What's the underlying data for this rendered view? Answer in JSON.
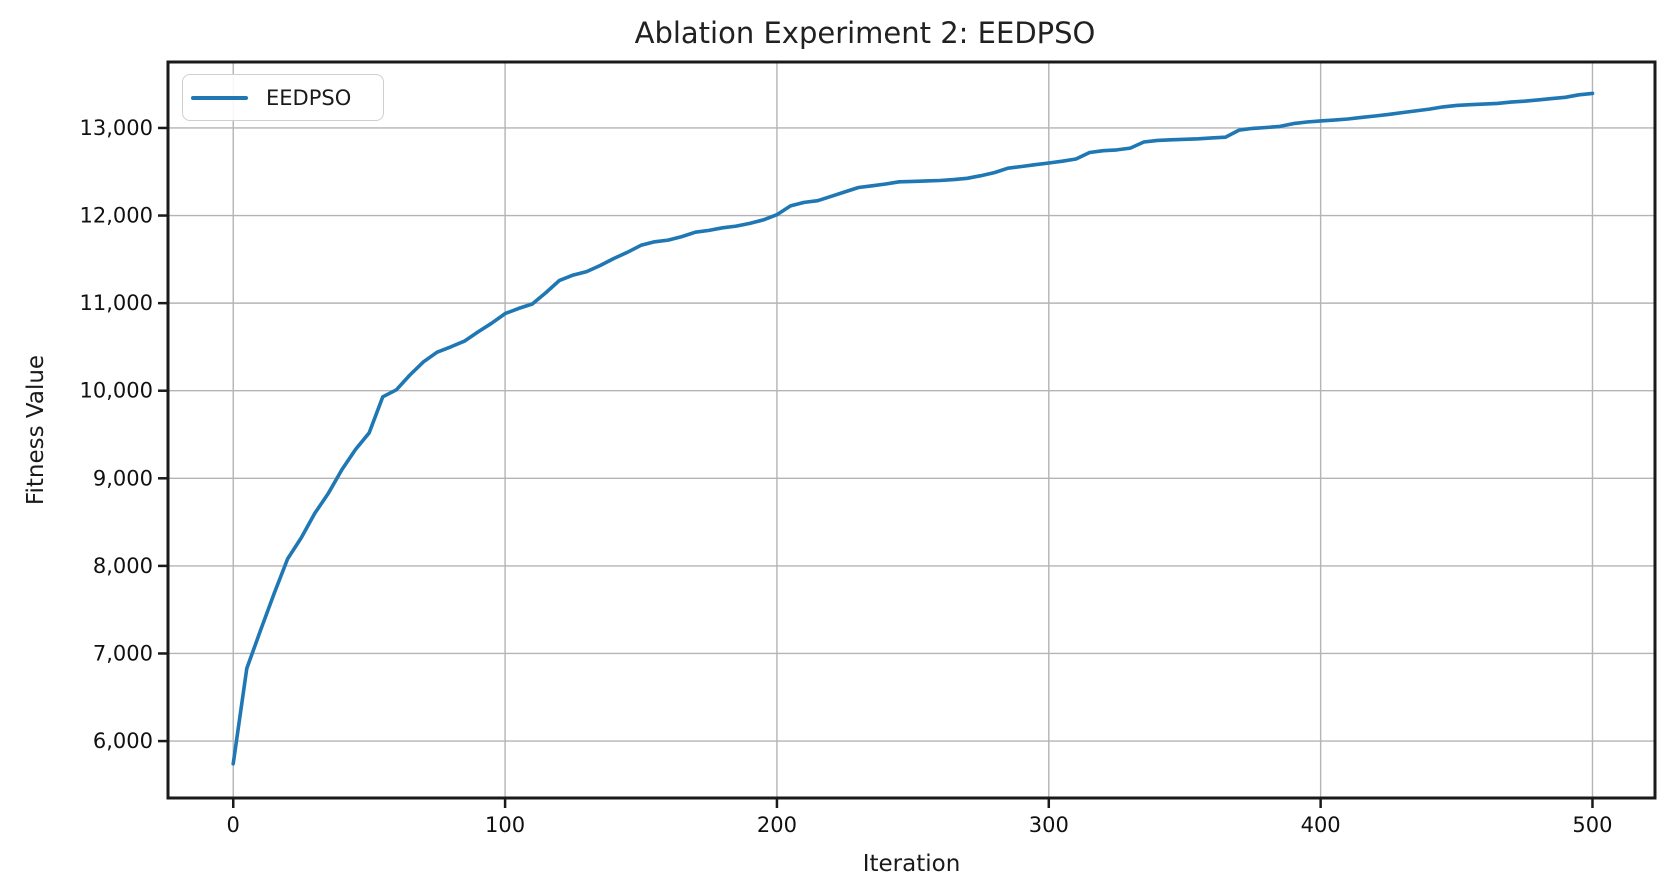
{
  "chart_data": {
    "type": "line",
    "title": "Ablation Experiment 2: EEDPSO",
    "xlabel": "Iteration",
    "ylabel": "Fitness Value",
    "grid": true,
    "legend_position": "upper left",
    "grid_color": "#b4b4b4",
    "spine_color": "#1a1a1a",
    "xlim": [
      -24,
      523
    ],
    "ylim": [
      5350,
      13753
    ],
    "x_ticks": [
      0,
      100,
      200,
      300,
      400,
      500
    ],
    "x_tick_labels": [
      "0",
      "100",
      "200",
      "300",
      "400",
      "500"
    ],
    "y_ticks": [
      6000,
      7000,
      8000,
      9000,
      10000,
      11000,
      12000,
      13000
    ],
    "y_tick_labels": [
      "6,000",
      "7,000",
      "8,000",
      "9,000",
      "10,000",
      "11,000",
      "12,000",
      "13,000"
    ],
    "series": [
      {
        "name": "EEDPSO",
        "color": "#1f77b4",
        "x": [
          0,
          5,
          10,
          15,
          20,
          25,
          30,
          35,
          40,
          45,
          50,
          55,
          60,
          65,
          70,
          75,
          80,
          85,
          90,
          95,
          100,
          105,
          110,
          115,
          120,
          125,
          130,
          135,
          140,
          145,
          150,
          155,
          160,
          165,
          170,
          175,
          180,
          185,
          190,
          195,
          200,
          205,
          210,
          215,
          220,
          225,
          230,
          235,
          240,
          245,
          250,
          255,
          260,
          265,
          270,
          275,
          280,
          285,
          290,
          295,
          300,
          305,
          310,
          315,
          320,
          325,
          330,
          335,
          340,
          345,
          350,
          355,
          360,
          365,
          370,
          375,
          380,
          385,
          390,
          395,
          400,
          405,
          410,
          415,
          420,
          425,
          430,
          435,
          440,
          445,
          450,
          455,
          460,
          465,
          470,
          475,
          480,
          485,
          490,
          495,
          500
        ],
        "y": [
          5740,
          6830,
          7260,
          7680,
          8080,
          8320,
          8600,
          8830,
          9100,
          9330,
          9520,
          9930,
          10010,
          10180,
          10330,
          10440,
          10500,
          10565,
          10670,
          10770,
          10880,
          10940,
          10990,
          11120,
          11260,
          11320,
          11360,
          11430,
          11510,
          11580,
          11660,
          11700,
          11720,
          11760,
          11810,
          11830,
          11860,
          11880,
          11910,
          11950,
          12010,
          12110,
          12150,
          12170,
          12220,
          12270,
          12320,
          12340,
          12360,
          12385,
          12390,
          12395,
          12400,
          12410,
          12425,
          12455,
          12490,
          12540,
          12560,
          12580,
          12600,
          12620,
          12645,
          12720,
          12740,
          12750,
          12770,
          12840,
          12858,
          12865,
          12870,
          12876,
          12886,
          12895,
          12975,
          12995,
          13005,
          13018,
          13050,
          13068,
          13080,
          13090,
          13102,
          13120,
          13136,
          13155,
          13175,
          13195,
          13215,
          13240,
          13258,
          13266,
          13272,
          13280,
          13295,
          13305,
          13320,
          13335,
          13350,
          13378,
          13395
        ]
      }
    ]
  }
}
